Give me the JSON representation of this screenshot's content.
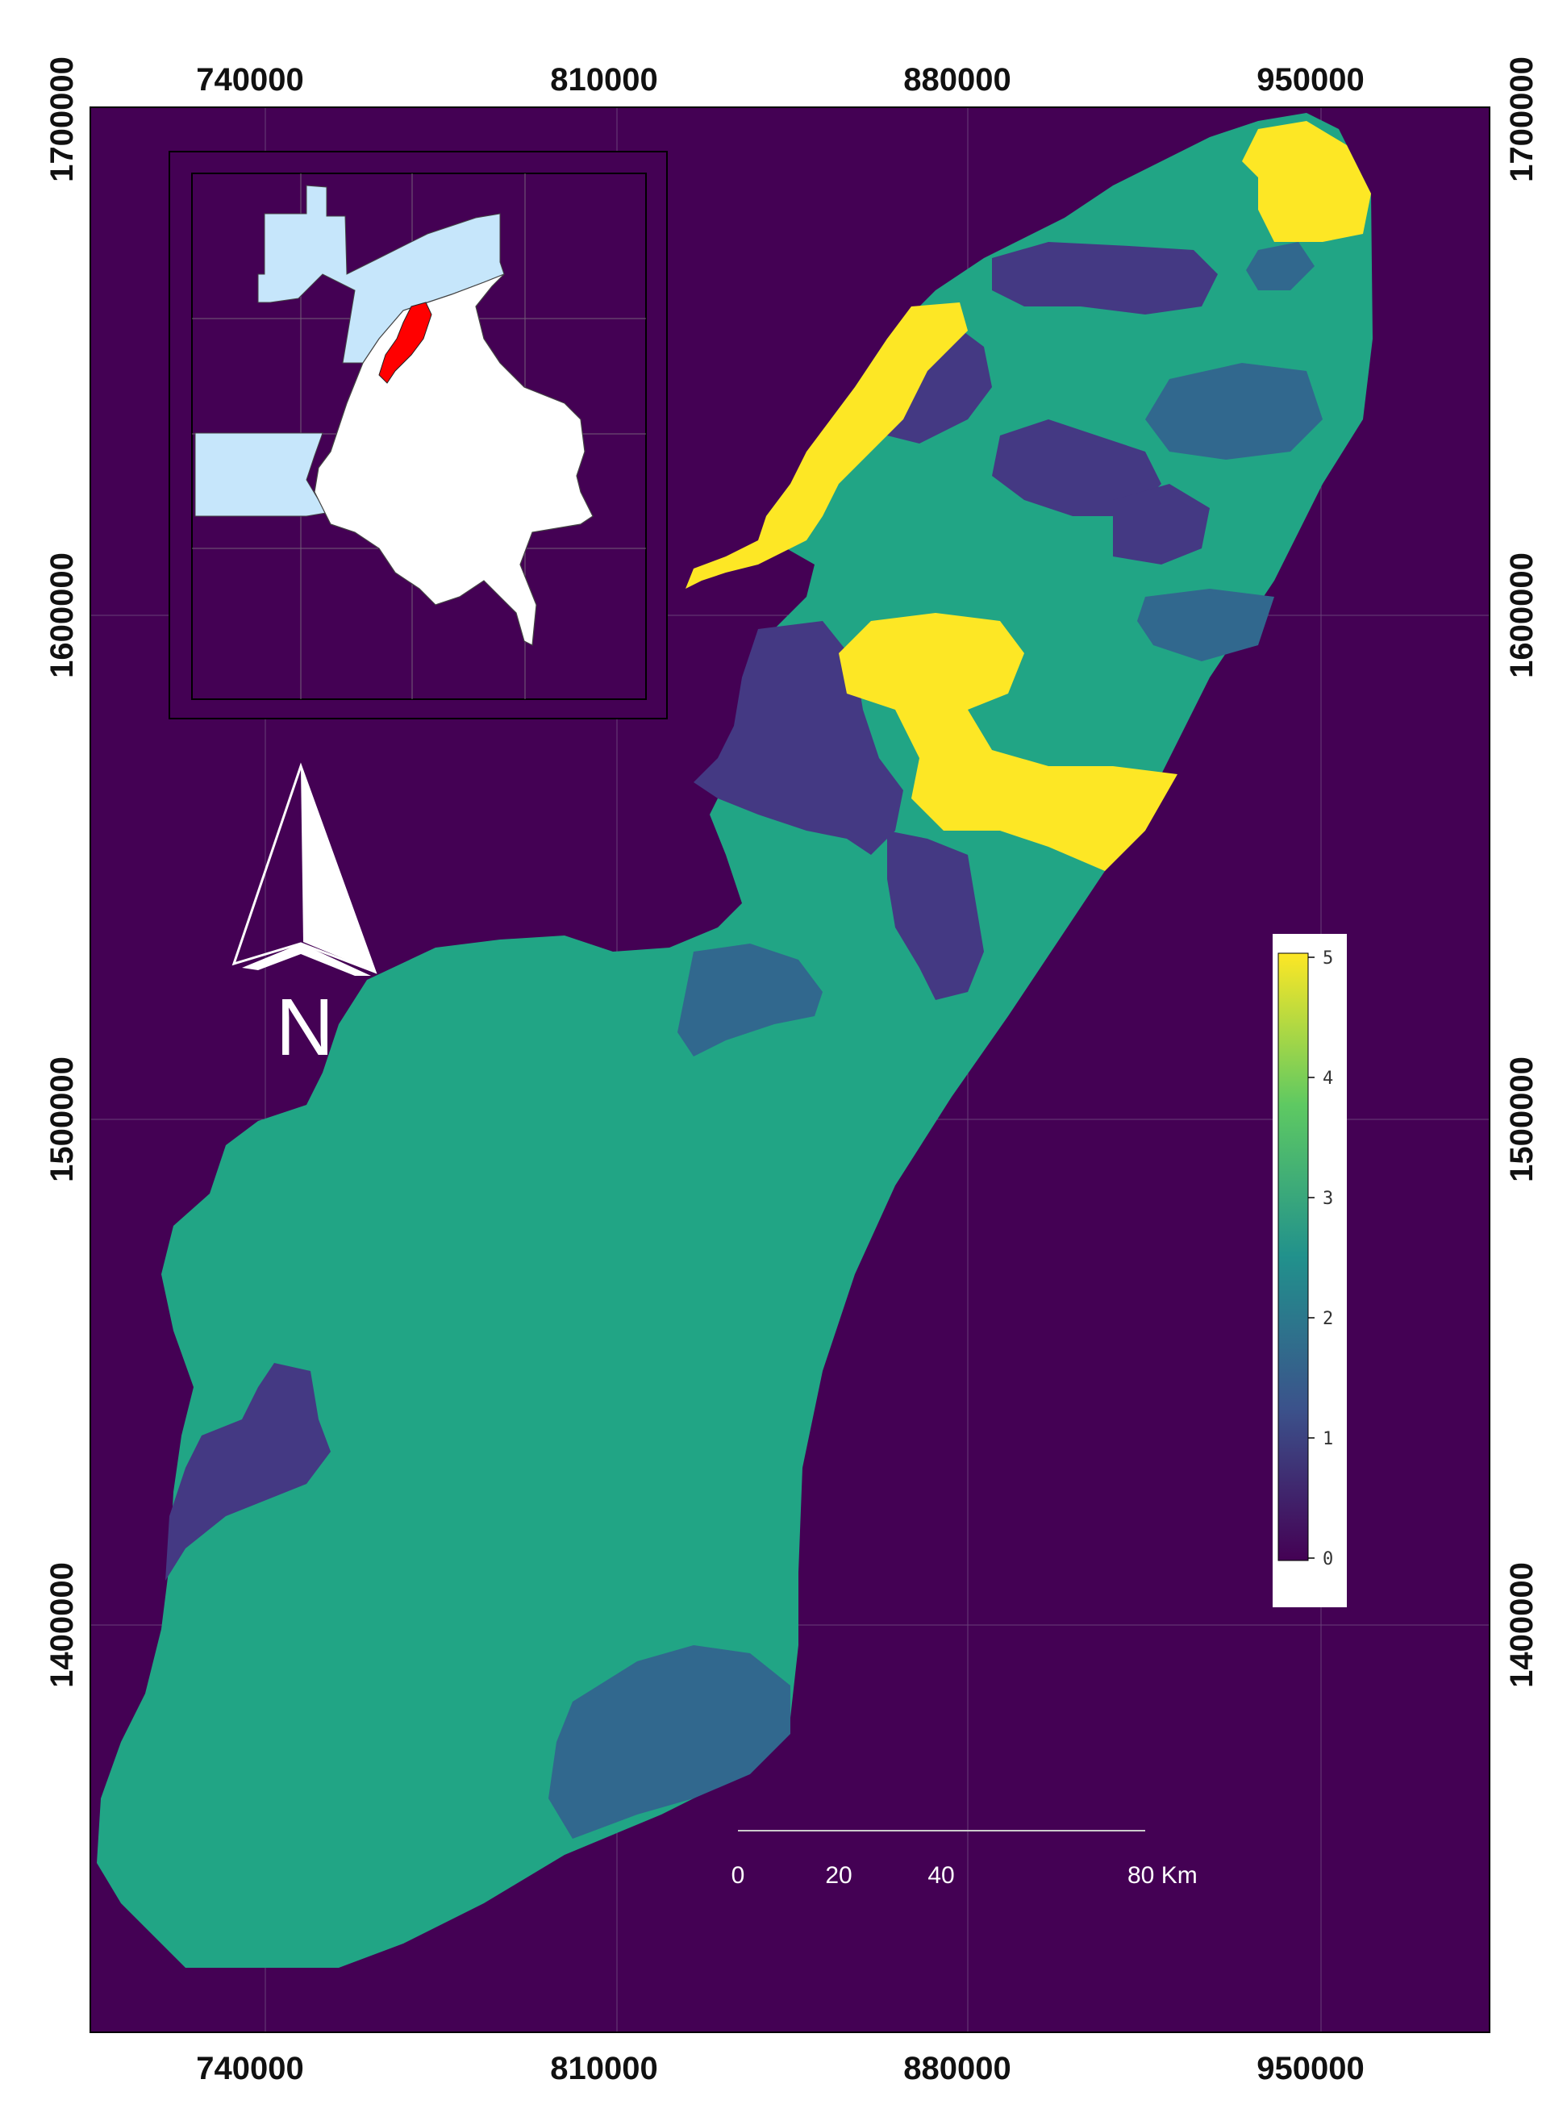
{
  "axes": {
    "x_ticks": [
      "740000",
      "810000",
      "880000",
      "950000"
    ],
    "y_ticks": [
      "1700000",
      "1600000",
      "1500000",
      "1400000"
    ]
  },
  "legend": {
    "labels": [
      "5",
      "4",
      "3",
      "2",
      "1",
      "0"
    ],
    "colors": [
      "#fde725",
      "#5ec962",
      "#21918c",
      "#3b528b",
      "#440154"
    ]
  },
  "north_arrow": {
    "letter": "N"
  },
  "scale_bar": {
    "labels": [
      "0",
      "20",
      "40",
      "80 Km"
    ]
  },
  "colors": {
    "background": "#440154",
    "class_1": "#443983",
    "class_2": "#31688e",
    "class_3": "#21a585",
    "class_5": "#fde725",
    "inset_highlight": "#ff0000",
    "inset_water": "#c6e6fb",
    "inset_land": "#ffffff"
  }
}
